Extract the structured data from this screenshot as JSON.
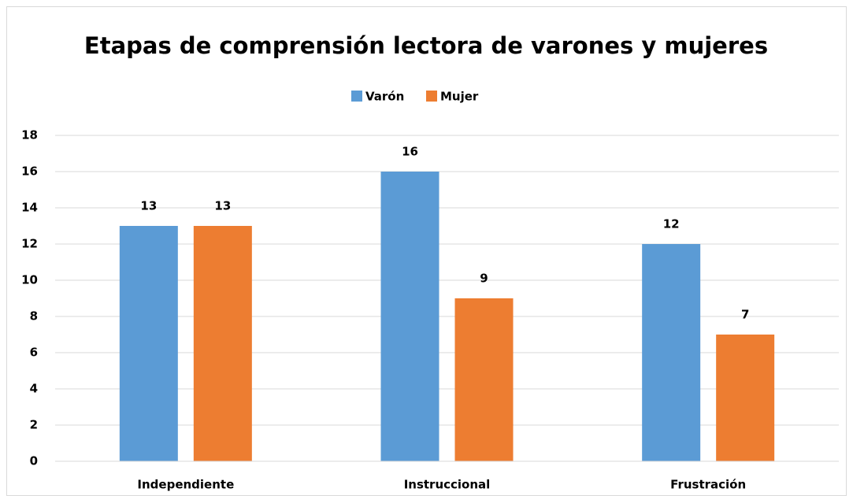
{
  "chart_data": {
    "type": "bar",
    "title": "Etapas de comprensión lectora de varones y mujeres",
    "categories": [
      "Independiente",
      "Instruccional",
      "Frustración"
    ],
    "series": [
      {
        "name": "Varón",
        "color": "#5b9bd5",
        "values": [
          13,
          16,
          12
        ]
      },
      {
        "name": "Mujer",
        "color": "#ed7d31",
        "values": [
          13,
          9,
          7
        ]
      }
    ],
    "ylim": [
      0,
      18
    ],
    "yticks": [
      0,
      2,
      4,
      6,
      8,
      10,
      12,
      14,
      16,
      18
    ],
    "grid": true,
    "legend": "top"
  }
}
